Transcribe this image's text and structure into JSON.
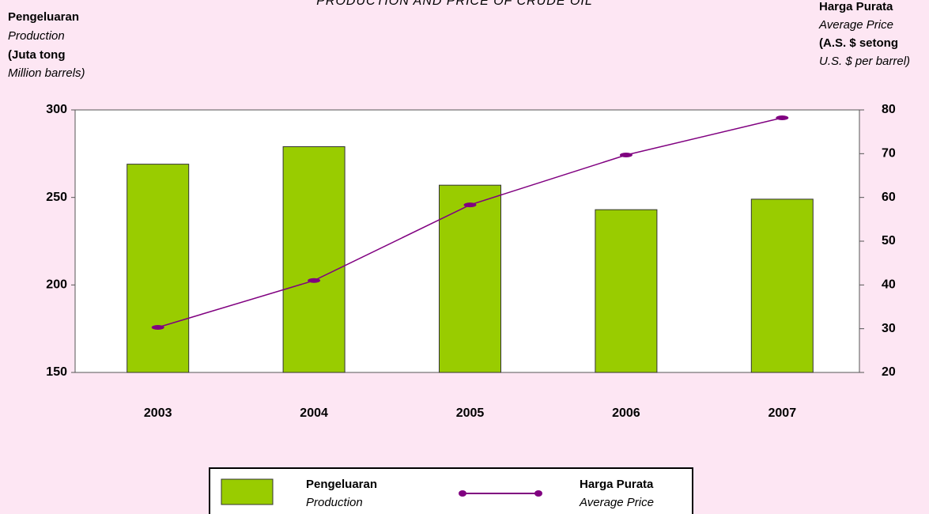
{
  "chart_data": {
    "type": "bar_line",
    "title": "PRODUCTION AND PRICE OF CRUDE OIL",
    "y_label": [
      "Pengeluaran",
      "Production",
      "(Juta tong",
      "Million barrels)"
    ],
    "y2_label": [
      "Harga Purata",
      "Average Price",
      "(A.S. $ setong",
      "U.S. $ per barrel)"
    ],
    "categories": [
      "2003",
      "2004",
      "2005",
      "2006",
      "2007"
    ],
    "ylim": [
      150,
      300
    ],
    "yticks": [
      150,
      200,
      250,
      300
    ],
    "y2lim": [
      20,
      80
    ],
    "y2ticks": [
      20,
      30,
      40,
      50,
      60,
      70,
      80
    ],
    "series": [
      {
        "name": "Pengeluaran",
        "name_en": "Production",
        "type": "bar",
        "color": "#99cc00",
        "values": [
          269,
          279,
          257,
          243,
          249
        ]
      },
      {
        "name": "Harga Purata",
        "name_en": "Average Price",
        "type": "line",
        "axis": "y2",
        "color": "#800080",
        "values": [
          30.3,
          41,
          58.3,
          69.7,
          78.2
        ]
      }
    ]
  }
}
